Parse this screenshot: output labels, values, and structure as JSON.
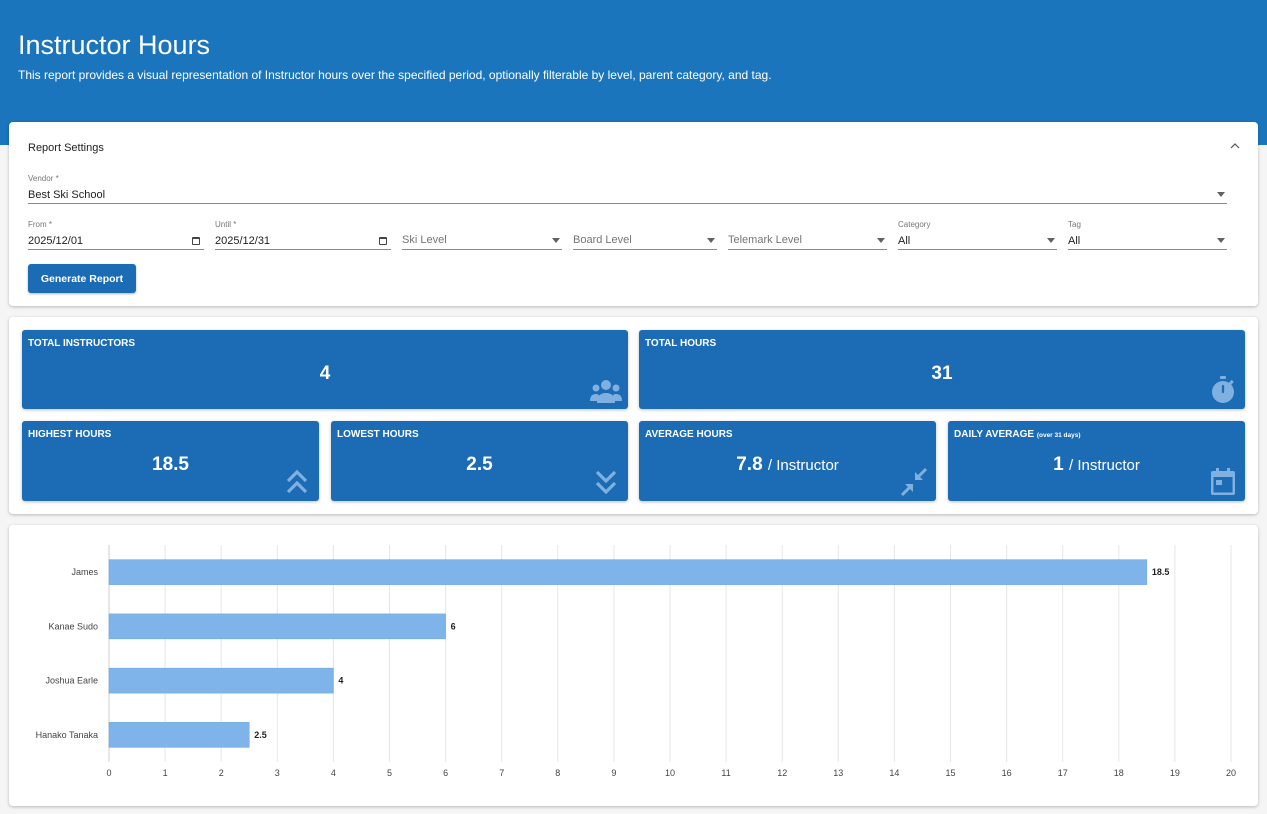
{
  "header": {
    "title": "Instructor Hours",
    "subtitle": "This report provides a visual representation of Instructor hours over the specified period, optionally filterable by level, parent category, and tag."
  },
  "settings": {
    "title": "Report Settings",
    "collapse_icon": "chevron-up-icon",
    "vendor": {
      "label": "Vendor *",
      "value": "Best Ski School"
    },
    "from": {
      "label": "From *",
      "value": "2025/12/01"
    },
    "until": {
      "label": "Until *",
      "value": "2025/12/31"
    },
    "ski_level": {
      "placeholder": "Ski Level"
    },
    "board_level": {
      "placeholder": "Board Level"
    },
    "telemark_level": {
      "placeholder": "Telemark Level"
    },
    "category": {
      "label": "Category",
      "value": "All"
    },
    "tag": {
      "label": "Tag",
      "value": "All"
    },
    "generate_label": "Generate Report"
  },
  "stats": {
    "tile_color": "#1b6cb5",
    "total_instructors": {
      "title": "TOTAL INSTRUCTORS",
      "value": "4",
      "icon": "group-icon"
    },
    "total_hours": {
      "title": "TOTAL HOURS",
      "value": "31",
      "icon": "timer-icon"
    },
    "highest_hours": {
      "title": "HIGHEST HOURS",
      "value": "18.5",
      "icon": "double-chevron-up-icon"
    },
    "lowest_hours": {
      "title": "LOWEST HOURS",
      "value": "2.5",
      "icon": "double-chevron-down-icon"
    },
    "average_hours": {
      "title": "AVERAGE HOURS",
      "value": "7.8",
      "unit": "/ Instructor",
      "icon": "compress-arrows-icon"
    },
    "daily_average": {
      "title": "DAILY AVERAGE",
      "note": "(over 31 days)",
      "value": "1",
      "unit": "/ Instructor",
      "icon": "calendar-icon"
    }
  },
  "chart_data": {
    "type": "bar",
    "orientation": "horizontal",
    "categories": [
      "James",
      "Kanae Sudo",
      "Joshua Earle",
      "Hanako Tanaka"
    ],
    "values": [
      18.5,
      6,
      4,
      2.5
    ],
    "value_labels": [
      "18.5",
      "6",
      "4",
      "2.5"
    ],
    "xlim": [
      0,
      20
    ],
    "x_ticks": [
      "0",
      "1",
      "2",
      "3",
      "4",
      "5",
      "6",
      "7",
      "8",
      "9",
      "10",
      "11",
      "12",
      "13",
      "14",
      "15",
      "16",
      "17",
      "18",
      "19",
      "20"
    ],
    "grid": true,
    "bar_color": "#7eb4ea"
  }
}
